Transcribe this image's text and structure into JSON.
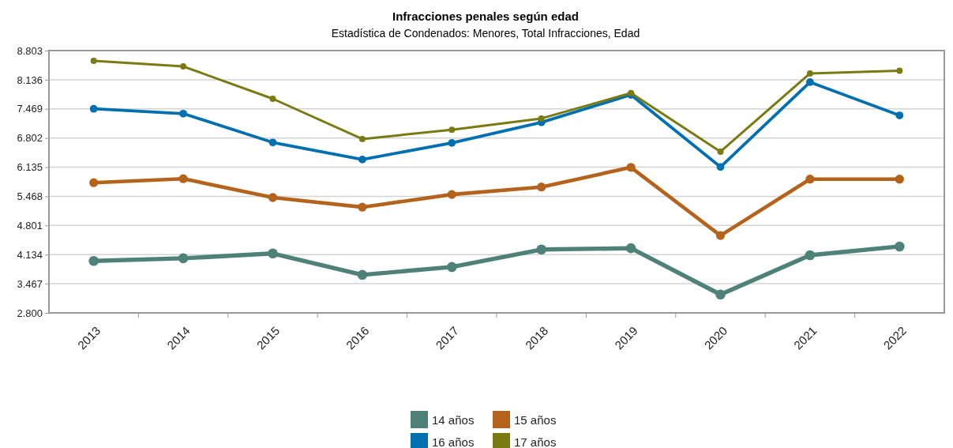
{
  "chart_data": {
    "type": "line",
    "title": "Infracciones penales según edad",
    "subtitle": "Estadística de Condenados: Menores, Total Infracciones, Edad",
    "categories": [
      "2013",
      "2014",
      "2015",
      "2016",
      "2017",
      "2018",
      "2019",
      "2020",
      "2021",
      "2022"
    ],
    "series": [
      {
        "name": "14 años",
        "color": "#4e8279",
        "values": [
          3990,
          4050,
          4160,
          3670,
          3850,
          4250,
          4280,
          3220,
          4120,
          4320
        ]
      },
      {
        "name": "15 años",
        "color": "#b5621a",
        "values": [
          5780,
          5870,
          5440,
          5220,
          5510,
          5680,
          6130,
          4570,
          5860,
          5860
        ]
      },
      {
        "name": "16 años",
        "color": "#0070b0",
        "values": [
          7470,
          7360,
          6700,
          6310,
          6690,
          7160,
          7790,
          6140,
          8080,
          7320
        ]
      },
      {
        "name": "17 años",
        "color": "#7a7a12",
        "values": [
          8570,
          8440,
          7700,
          6780,
          6990,
          7250,
          7830,
          6490,
          8280,
          8340
        ]
      }
    ],
    "ylim": [
      2800,
      8803
    ],
    "yticks": [
      {
        "value": 2800,
        "label": "2.800"
      },
      {
        "value": 3467,
        "label": "3.467"
      },
      {
        "value": 4134,
        "label": "4.134"
      },
      {
        "value": 4801,
        "label": "4.801"
      },
      {
        "value": 5468,
        "label": "5.468"
      },
      {
        "value": 6135,
        "label": "6.135"
      },
      {
        "value": 6802,
        "label": "6.802"
      },
      {
        "value": 7469,
        "label": "7.469"
      },
      {
        "value": 8136,
        "label": "8.136"
      },
      {
        "value": 8803,
        "label": "8.803"
      }
    ],
    "grid": "y",
    "legend": "bottom",
    "marker": "circle",
    "line_style": "solid"
  }
}
